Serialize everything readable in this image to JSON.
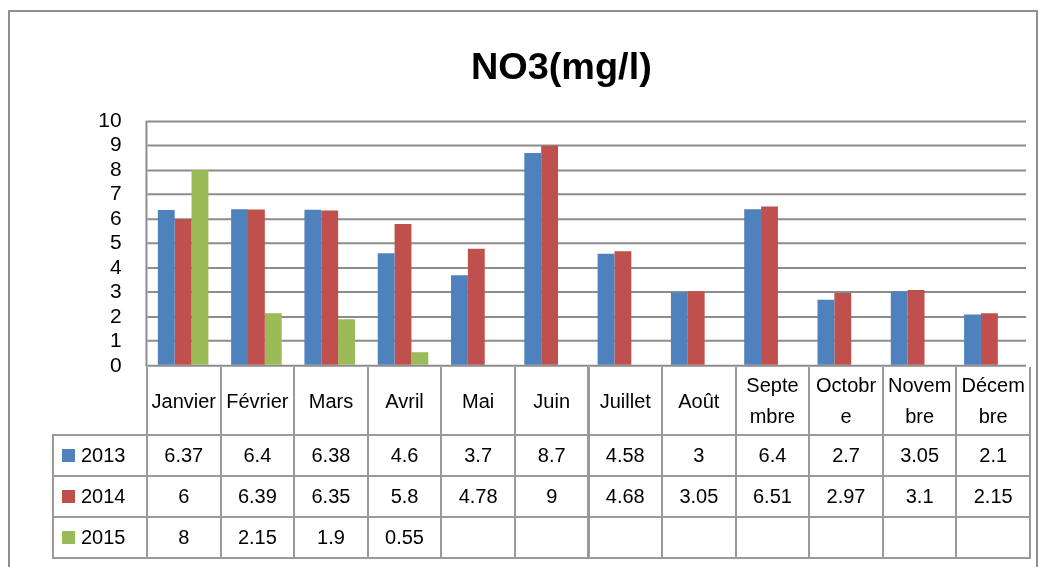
{
  "chart_data": {
    "type": "bar",
    "title": "NO3(mg/l)",
    "categories": [
      "Janvier",
      "Février",
      "Mars",
      "Avril",
      "Mai",
      "Juin",
      "Juillet",
      "Août",
      "Septembre",
      "Octobre",
      "Novembre",
      "Décembre"
    ],
    "series": [
      {
        "name": "2013",
        "color": "#4f81bd",
        "values": [
          6.37,
          6.4,
          6.38,
          4.6,
          3.7,
          8.7,
          4.58,
          3,
          6.4,
          2.7,
          3.05,
          2.1
        ]
      },
      {
        "name": "2014",
        "color": "#c0504d",
        "values": [
          6,
          6.39,
          6.35,
          5.8,
          4.78,
          9,
          4.68,
          3.05,
          6.51,
          2.97,
          3.1,
          2.15
        ]
      },
      {
        "name": "2015",
        "color": "#9bbb59",
        "values": [
          8,
          2.15,
          1.9,
          0.55,
          null,
          null,
          null,
          null,
          null,
          null,
          null,
          null
        ]
      }
    ],
    "ylim": [
      0,
      10
    ],
    "yticks": [
      0,
      1,
      2,
      3,
      4,
      5,
      6,
      7,
      8,
      9,
      10
    ],
    "grid": "y",
    "legend": "bottom",
    "data_labels": true
  }
}
